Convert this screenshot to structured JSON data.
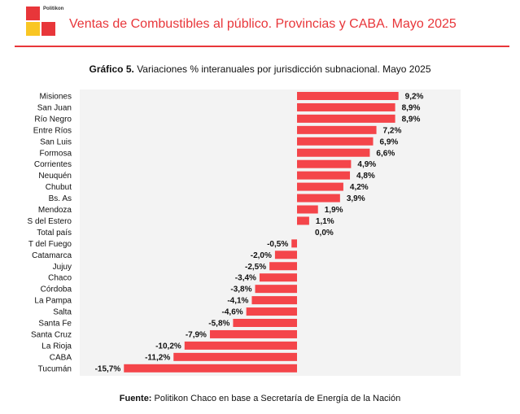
{
  "header": {
    "logo_text": "Politikon",
    "title": "Ventas de Combustibles al público. Provincias y CABA. Mayo 2025"
  },
  "chart_title": {
    "prefix": "Gráfico 5.",
    "text": "Variaciones % interanuales por jurisdicción subnacional. Mayo 2025"
  },
  "source": {
    "prefix": "Fuente:",
    "text": "Politikon Chaco en base a Secretaría de Energía de la Nación"
  },
  "colors": {
    "bar": "#f4454a",
    "accent": "#e8363a",
    "logo_red": "#e8363a",
    "logo_orange": "#f7a823",
    "logo_yellow": "#f9c623",
    "plot_background": "#f3f3f3"
  },
  "chart_data": {
    "type": "bar",
    "orientation": "horizontal",
    "categories": [
      "Misiones",
      "San Juan",
      "Río Negro",
      "Entre Ríos",
      "San Luis",
      "Formosa",
      "Corrientes",
      "Neuquén",
      "Chubut",
      "Bs. As",
      "Mendoza",
      "S del Estero",
      "Total país",
      "T del Fuego",
      "Catamarca",
      "Jujuy",
      "Chaco",
      "Córdoba",
      "La Pampa",
      "Salta",
      "Santa Fe",
      "Santa Cruz",
      "La Rioja",
      "CABA",
      "Tucumán"
    ],
    "values": [
      9.2,
      8.9,
      8.9,
      7.2,
      6.9,
      6.6,
      4.9,
      4.8,
      4.2,
      3.9,
      1.9,
      1.1,
      0.0,
      -0.5,
      -2.0,
      -2.5,
      -3.4,
      -3.8,
      -4.1,
      -4.6,
      -5.8,
      -7.9,
      -10.2,
      -11.2,
      -15.7
    ],
    "labels": [
      "9,2%",
      "8,9%",
      "8,9%",
      "7,2%",
      "6,9%",
      "6,6%",
      "4,9%",
      "4,8%",
      "4,2%",
      "3,9%",
      "1,9%",
      "1,1%",
      "0,0%",
      "-0,5%",
      "-2,0%",
      "-2,5%",
      "-3,4%",
      "-3,8%",
      "-4,1%",
      "-4,6%",
      "-5,8%",
      "-7,9%",
      "-10,2%",
      "-11,2%",
      "-15,7%"
    ],
    "xlim": [
      -16,
      10
    ],
    "grid": false,
    "legend": "none"
  }
}
